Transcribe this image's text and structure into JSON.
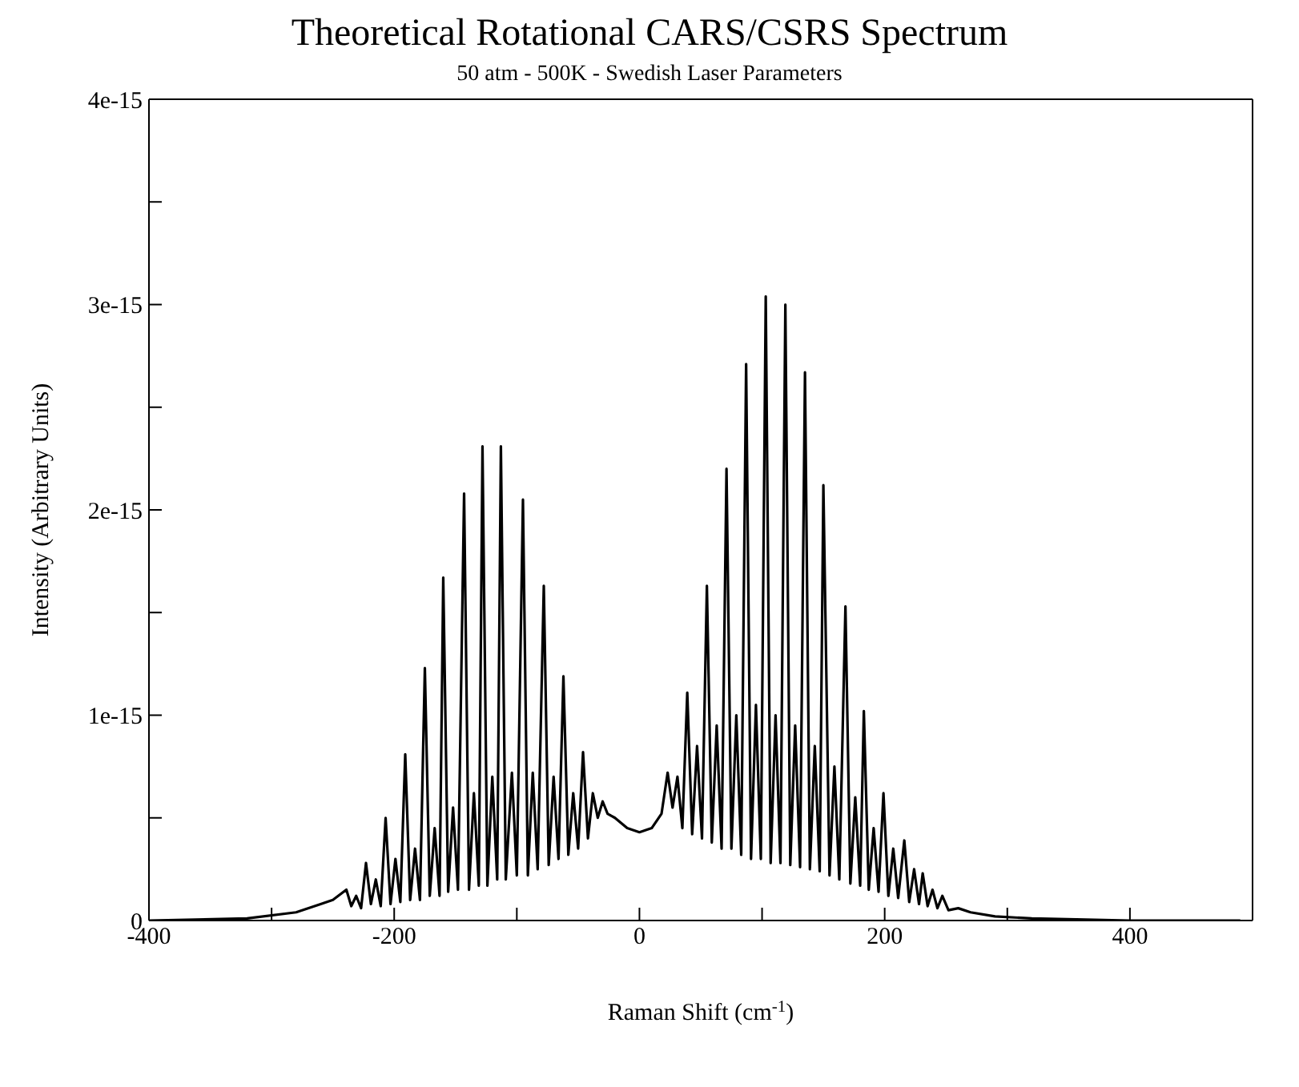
{
  "chart_data": {
    "type": "line",
    "title": "Theoretical Rotational CARS/CSRS Spectrum",
    "subtitle": "50 atm - 500K - Swedish Laser Parameters",
    "xlabel": "Raman Shift (cm$^{-1}$)",
    "ylabel": "Intensity (Arbitrary Units)",
    "xlim": [
      -400,
      500
    ],
    "xticks": [
      -400,
      {
        "value": -300,
        "label": null
      },
      -200,
      {
        "value": -100,
        "label": null
      },
      0,
      {
        "value": 100,
        "label": null
      },
      200,
      {
        "value": 300,
        "label": null
      },
      400
    ],
    "ylim": [
      0,
      4e-15
    ],
    "yticks": [
      0,
      {
        "value": 5e-16,
        "label": null
      },
      1e-15,
      {
        "value": 1.5e-15,
        "label": null
      },
      2e-15,
      {
        "value": 2.5e-15,
        "label": null
      },
      3e-15,
      {
        "value": 3.5e-15,
        "label": null
      },
      4e-15
    ],
    "marker": "none",
    "line_style": "solid",
    "series": [
      {
        "color": "#000000",
        "x": [
          -400,
          -320,
          -280,
          -260,
          -250,
          -239,
          -235,
          -231,
          -227,
          -223,
          -219,
          -215,
          -211,
          -207,
          -203,
          -199,
          -195,
          -191,
          -187,
          -183,
          -179,
          -175,
          -171,
          -167,
          -163,
          -160,
          -156,
          -152,
          -148,
          -143,
          -139,
          -135,
          -131,
          -128,
          -124,
          -120,
          -116,
          -113,
          -109,
          -104,
          -100,
          -95,
          -91,
          -87,
          -83,
          -78,
          -74,
          -70,
          -66,
          -62,
          -58,
          -54,
          -50,
          -46,
          -42,
          -38,
          -34,
          -30,
          -26,
          -20,
          -10,
          0,
          10,
          18,
          23,
          27,
          31,
          35,
          39,
          43,
          47,
          51,
          55,
          59,
          63,
          67,
          71,
          75,
          79,
          83,
          87,
          91,
          95,
          99,
          103,
          107,
          111,
          115,
          119,
          123,
          127,
          131,
          135,
          139,
          143,
          147,
          150,
          155,
          159,
          163,
          168,
          172,
          176,
          180,
          183,
          187,
          191,
          195,
          199,
          203,
          207,
          211,
          216,
          220,
          224,
          228,
          231,
          235,
          239,
          243,
          247,
          252,
          260,
          270,
          290,
          320,
          400,
          490
        ],
        "values": [
          0,
          1e-17,
          4e-17,
          8e-17,
          1e-16,
          1.5e-16,
          7e-17,
          1.2e-16,
          6e-17,
          2.8e-16,
          8e-17,
          2e-16,
          7e-17,
          5e-16,
          8e-17,
          3e-16,
          9e-17,
          8.1e-16,
          1e-16,
          3.5e-16,
          1e-16,
          1.23e-15,
          1.2e-16,
          4.5e-16,
          1.2e-16,
          1.67e-15,
          1.4e-16,
          5.5e-16,
          1.5e-16,
          2.08e-15,
          1.5e-16,
          6.2e-16,
          1.7e-16,
          2.31e-15,
          1.7e-16,
          7e-16,
          2e-16,
          2.31e-15,
          2e-16,
          7.2e-16,
          2.2e-16,
          2.05e-15,
          2.2e-16,
          7.2e-16,
          2.5e-16,
          1.63e-15,
          2.7e-16,
          7e-16,
          3e-16,
          1.19e-15,
          3.2e-16,
          6.2e-16,
          3.5e-16,
          8.2e-16,
          4e-16,
          6.2e-16,
          5e-16,
          5.8e-16,
          5.2e-16,
          5e-16,
          4.5e-16,
          4.3e-16,
          4.5e-16,
          5.2e-16,
          7.2e-16,
          5.5e-16,
          7e-16,
          4.5e-16,
          1.11e-15,
          4.2e-16,
          8.5e-16,
          4e-16,
          1.63e-15,
          3.8e-16,
          9.5e-16,
          3.5e-16,
          2.2e-15,
          3.5e-16,
          1e-15,
          3.2e-16,
          2.71e-15,
          3e-16,
          1.05e-15,
          3e-16,
          3.04e-15,
          2.8e-16,
          1e-15,
          2.8e-16,
          3e-15,
          2.7e-16,
          9.5e-16,
          2.6e-16,
          2.67e-15,
          2.5e-16,
          8.5e-16,
          2.4e-16,
          2.12e-15,
          2.2e-16,
          7.5e-16,
          2e-16,
          1.53e-15,
          1.8e-16,
          6e-16,
          1.7e-16,
          1.02e-15,
          1.5e-16,
          4.5e-16,
          1.4e-16,
          6.2e-16,
          1.2e-16,
          3.5e-16,
          1.1e-16,
          3.9e-16,
          9e-17,
          2.5e-16,
          8e-17,
          2.3e-16,
          7e-17,
          1.5e-16,
          6e-17,
          1.2e-16,
          5e-17,
          6e-17,
          4e-17,
          2e-17,
          1e-17,
          0,
          0
        ]
      }
    ]
  }
}
